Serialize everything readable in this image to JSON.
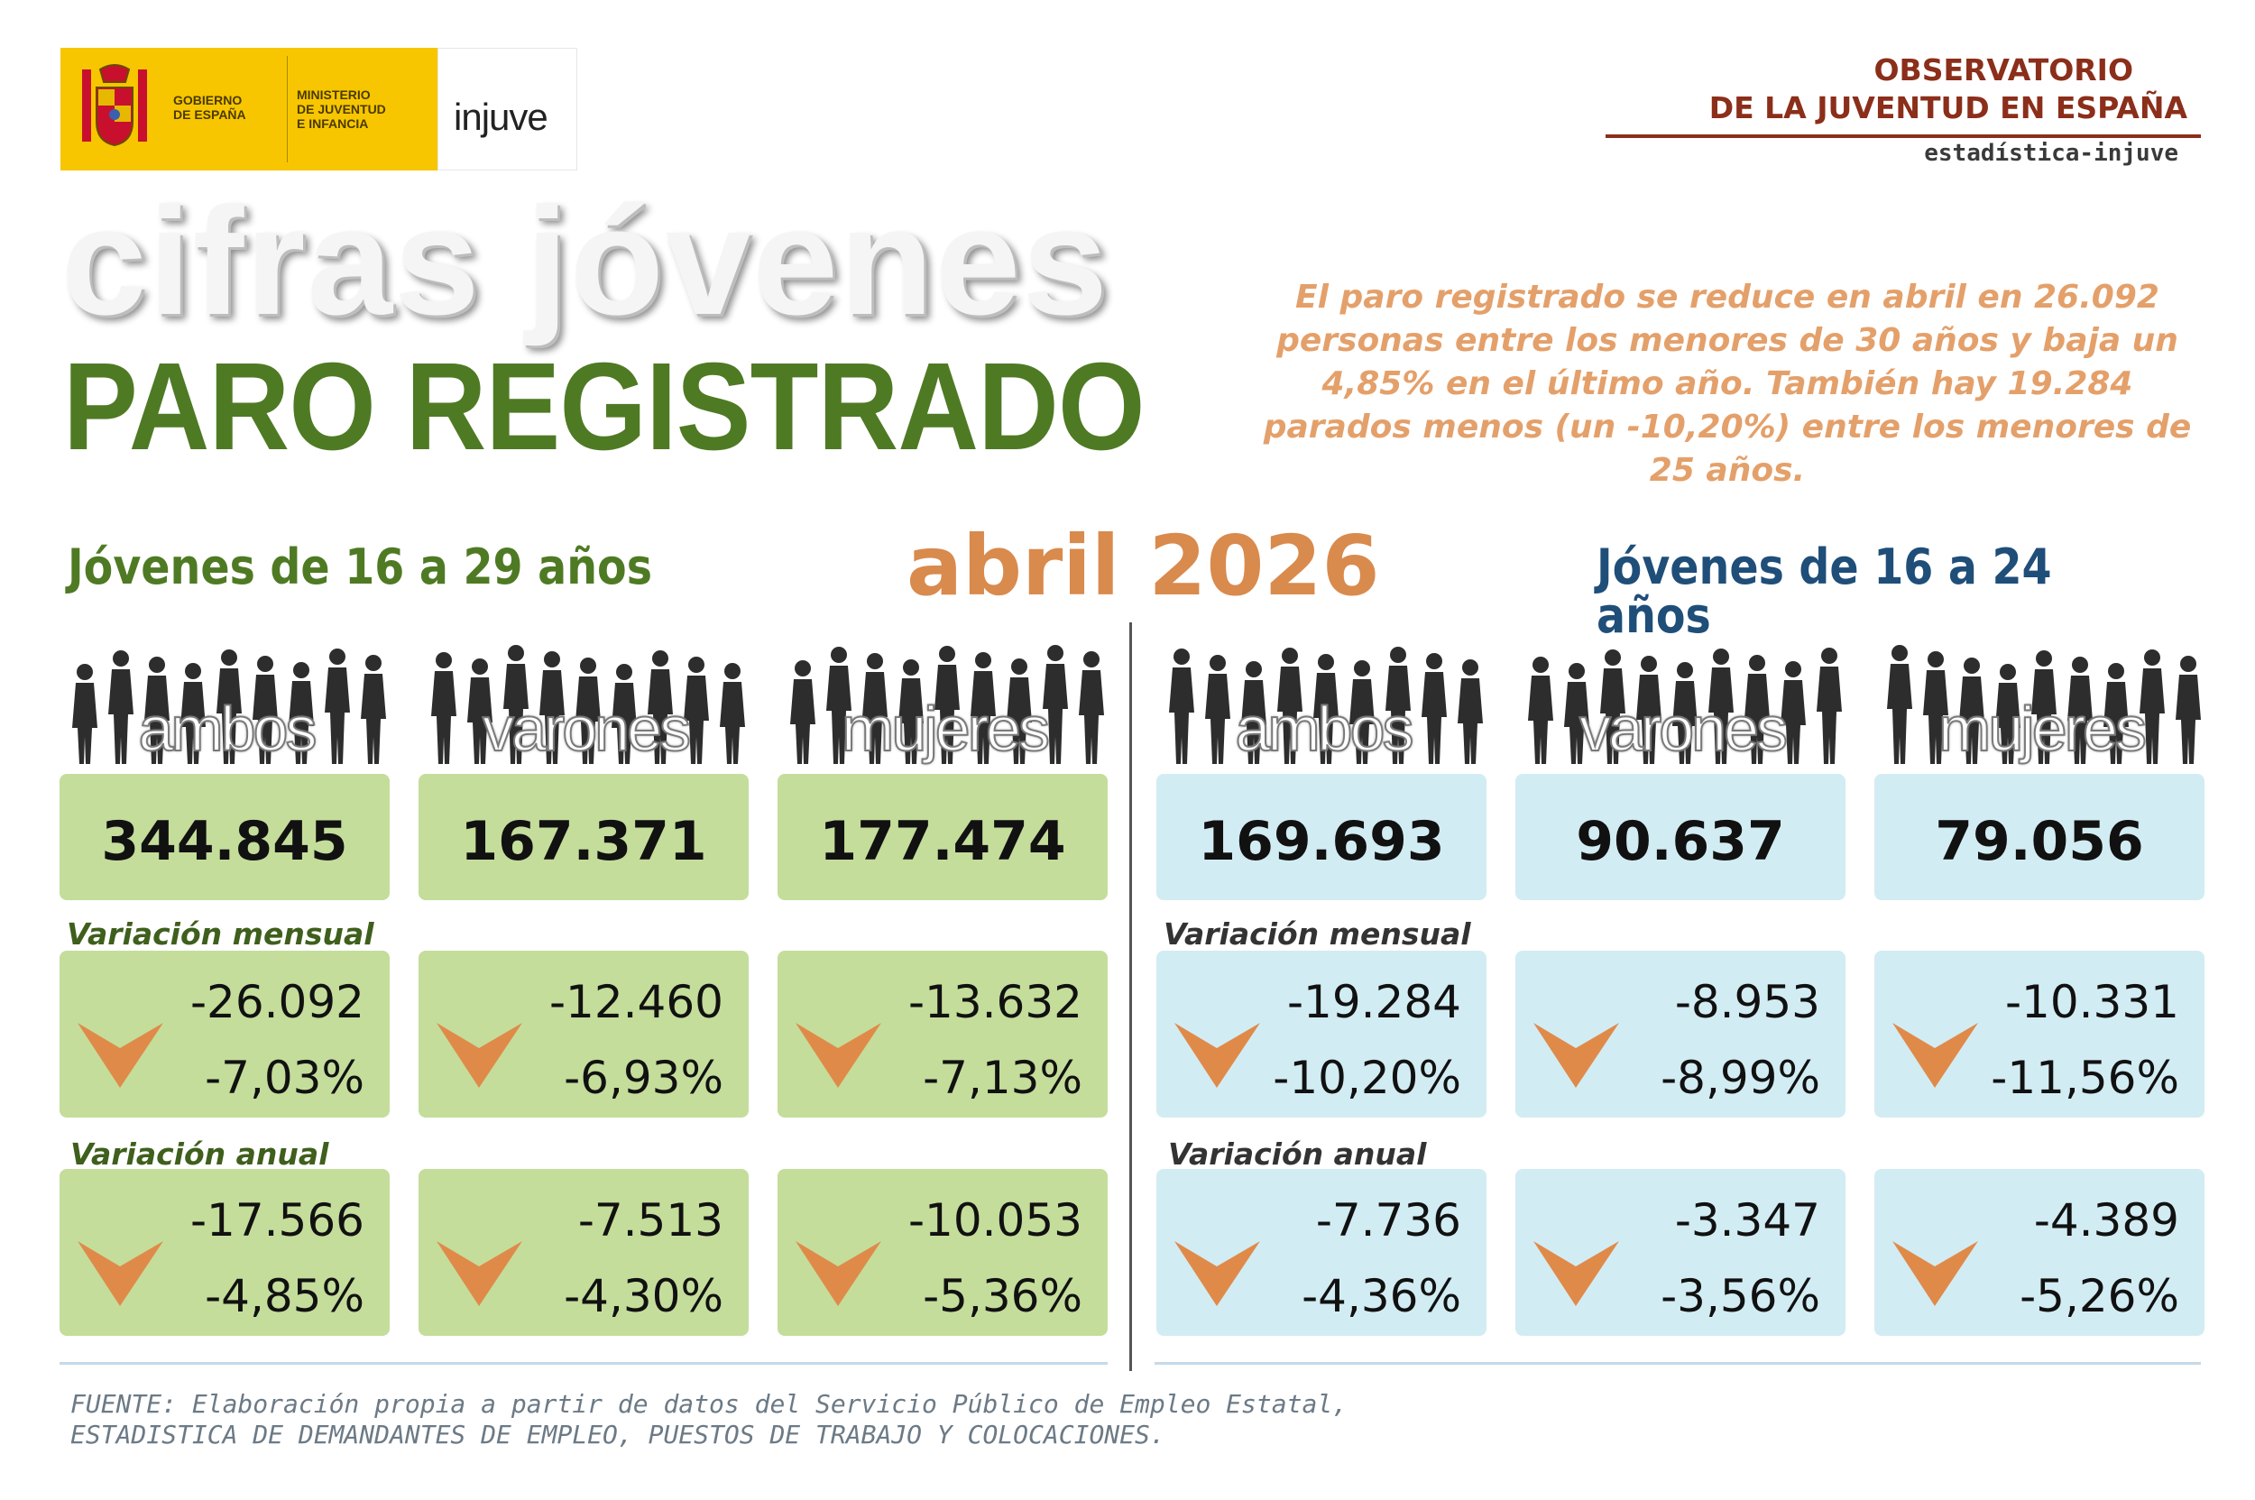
{
  "logo": {
    "gobierno_line1": "GOBIERNO",
    "gobierno_line2": "DE ESPAÑA",
    "ministerio_line1": "MINISTERIO",
    "ministerio_line2": "DE JUVENTUD",
    "ministerio_line3": "E INFANCIA",
    "injuve": "injuve",
    "colors": {
      "yellow": "#f7c600"
    }
  },
  "observatorio": {
    "line1": "OBSERVATORIO",
    "line2": "DE LA JUVENTUD EN ESPAÑA",
    "subtitle": "estadística-injuve"
  },
  "header": {
    "title": "cifras jóvenes",
    "subtitle": "PARO REGISTRADO",
    "summary": "El paro registrado se reduce en abril en 26.092 personas entre los menores de 30 años y baja un 4,85% en el último año. También hay 19.284 parados menos (un -10,20%) entre los menores de 25 años.",
    "month": "abril 2026"
  },
  "left": {
    "title": "Jóvenes de 16 a 29 años",
    "label_mensual": "Variación mensual",
    "label_anual": "Variación anual",
    "cards": [
      {
        "label": "ambos sexos",
        "total": "344.845",
        "m_abs": "-26.092",
        "m_pct": "-7,03%",
        "a_abs": "-17.566",
        "a_pct": "-4,85%"
      },
      {
        "label": "varones",
        "total": "167.371",
        "m_abs": "-12.460",
        "m_pct": "-6,93%",
        "a_abs": "-7.513",
        "a_pct": "-4,30%"
      },
      {
        "label": "mujeres",
        "total": "177.474",
        "m_abs": "-13.632",
        "m_pct": "-7,13%",
        "a_abs": "-10.053",
        "a_pct": "-5,36%"
      }
    ]
  },
  "right": {
    "title": "Jóvenes de 16 a 24 años",
    "label_mensual": "Variación mensual",
    "label_anual": "Variación anual",
    "cards": [
      {
        "label": "ambos sexos",
        "total": "169.693",
        "m_abs": "-19.284",
        "m_pct": "-10,20%",
        "a_abs": "-7.736",
        "a_pct": "-4,36%"
      },
      {
        "label": "varones",
        "total": "90.637",
        "m_abs": "-8.953",
        "m_pct": "-8,99%",
        "a_abs": "-3.347",
        "a_pct": "-3,56%"
      },
      {
        "label": "mujeres",
        "total": "79.056",
        "m_abs": "-10.331",
        "m_pct": "-11,56%",
        "a_abs": "-4.389",
        "a_pct": "-5,26%"
      }
    ]
  },
  "footer": {
    "line1": "FUENTE: Elaboración propia a partir de datos del Servicio Público de Empleo Estatal,",
    "line2": "ESTADISTICA DE DEMANDANTES DE EMPLEO, PUESTOS DE TRABAJO Y COLOCACIONES."
  },
  "colors": {
    "green_box": "#c4dd9b",
    "blue_box": "#d2ecf3",
    "arrow": "#e08a4a",
    "title_green": "#4f7a24",
    "title_blue": "#1f4e79",
    "accent_orange": "#d98a4d"
  },
  "icons": {
    "down": "down-arrow-icon",
    "people": "people-silhouettes-icon"
  }
}
